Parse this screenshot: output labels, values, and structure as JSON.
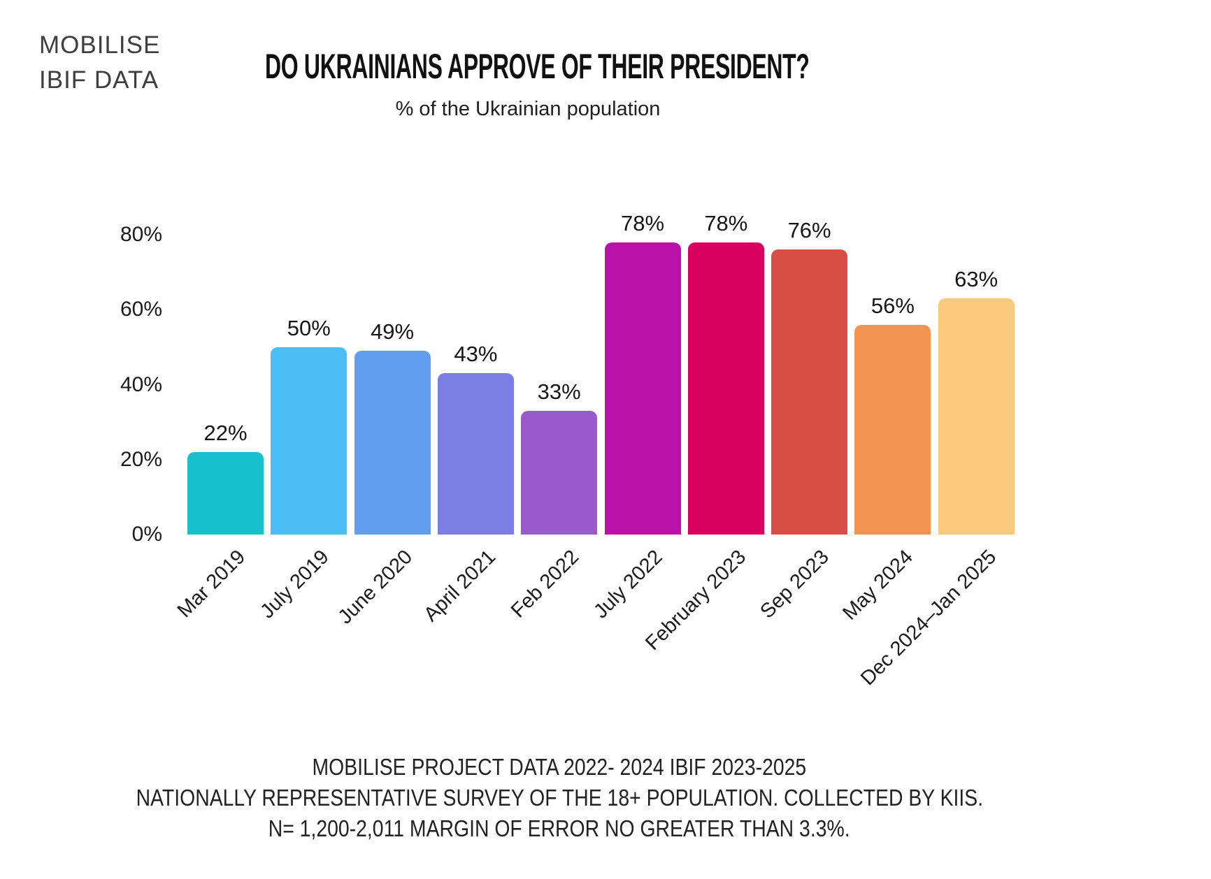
{
  "logo": {
    "line1": "MOBILISE",
    "line2": "IBIF DATA"
  },
  "header": {
    "title": "DO UKRAINIANS APPROVE OF THEIR PRESIDENT?",
    "subtitle": "% of the Ukrainian population"
  },
  "chart_data": {
    "type": "bar",
    "title": "DO UKRAINIANS APPROVE OF THEIR PRESIDENT?",
    "subtitle": "% of the Ukrainian population",
    "categories": [
      "Mar 2019",
      "July 2019",
      "June 2020",
      "April 2021",
      "Feb 2022",
      "July 2022",
      "February 2023",
      "Sep 2023",
      "May 2024",
      "Dec 2024–Jan 2025"
    ],
    "values": [
      22,
      50,
      49,
      43,
      33,
      78,
      78,
      76,
      56,
      63
    ],
    "value_labels": [
      "22%",
      "50%",
      "49%",
      "43%",
      "33%",
      "78%",
      "78%",
      "76%",
      "56%",
      "63%"
    ],
    "bar_colors": [
      "#17c0cc",
      "#4cbef7",
      "#619ef0",
      "#7b7fe3",
      "#9a5ace",
      "#b911a9",
      "#d8015f",
      "#d94f45",
      "#f39550",
      "#fac97c"
    ],
    "xlabel": "",
    "ylabel": "",
    "y_ticks": [
      {
        "value": 0,
        "label": "0%"
      },
      {
        "value": 20,
        "label": "20%"
      },
      {
        "value": 40,
        "label": "40%"
      },
      {
        "value": 60,
        "label": "60%"
      },
      {
        "value": 80,
        "label": "80%"
      }
    ],
    "ylim": [
      0,
      80
    ],
    "grid": false,
    "legend": false,
    "bar_label_position": "above"
  },
  "footer": {
    "line1": "MOBILISE PROJECT DATA 2022- 2024 IBIF 2023-2025",
    "line2": "NATIONALLY REPRESENTATIVE SURVEY  OF THE 18+ POPULATION. COLLECTED BY KIIS.",
    "line3": "N= 1,200-2,011 MARGIN OF ERROR NO GREATER THAN 3.3%."
  }
}
